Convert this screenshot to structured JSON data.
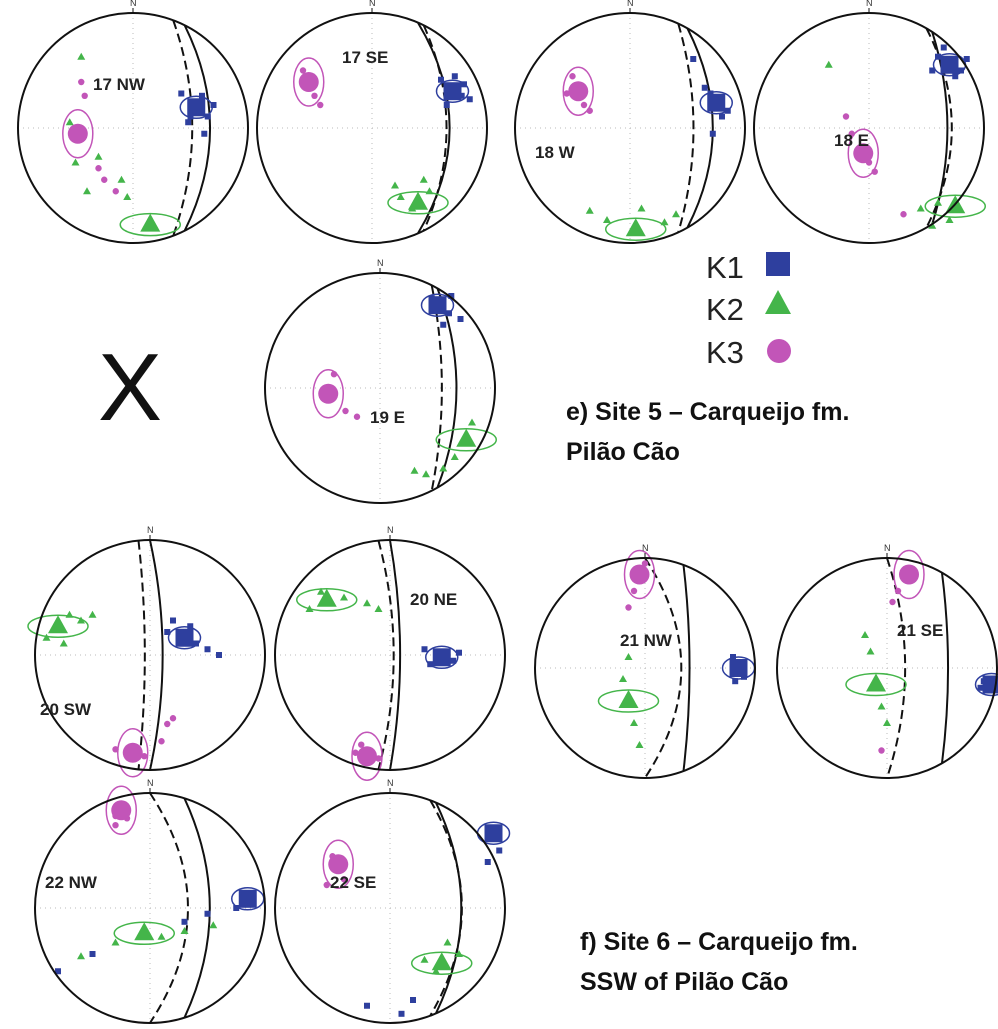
{
  "colors": {
    "k1": "#2e3f9e",
    "k2": "#44b54a",
    "k3": "#c255b8",
    "circle": "#111111",
    "grid": "#bbbbbb"
  },
  "north_label": "N",
  "legend": [
    {
      "label": "K1",
      "shape": "square",
      "color": "#2e3f9e"
    },
    {
      "label": "K2",
      "shape": "triangle",
      "color": "#44b54a"
    },
    {
      "label": "K3",
      "shape": "circle",
      "color": "#c255b8"
    }
  ],
  "missing_marker": "X",
  "captions": [
    {
      "id": "site5",
      "lines": [
        "e) Site 5 – Carqueijo fm.",
        "Pilão Cão"
      ]
    },
    {
      "id": "site6",
      "lines": [
        "f) Site 6 – Carqueijo fm.",
        "SSW of Pilão Cão"
      ]
    }
  ],
  "nets": [
    {
      "id": "17NW",
      "label": "17 NW",
      "k1": {
        "mean": [
          0.55,
          -0.18
        ],
        "scatter": [
          [
            0.42,
            -0.3
          ],
          [
            0.65,
            -0.1
          ],
          [
            0.5,
            -0.22
          ],
          [
            0.6,
            -0.28
          ],
          [
            0.7,
            -0.2
          ],
          [
            0.5,
            -0.1
          ],
          [
            0.48,
            -0.05
          ],
          [
            0.62,
            0.05
          ]
        ]
      },
      "k2": {
        "mean": [
          0.15,
          0.84
        ],
        "scatter": [
          [
            -0.45,
            -0.62
          ],
          [
            -0.3,
            0.25
          ],
          [
            -0.1,
            0.45
          ],
          [
            -0.4,
            0.55
          ],
          [
            -0.5,
            0.3
          ],
          [
            -0.05,
            0.6
          ],
          [
            -0.55,
            -0.05
          ]
        ]
      },
      "k3": {
        "mean": [
          -0.48,
          0.05
        ],
        "scatter": [
          [
            -0.42,
            -0.28
          ],
          [
            -0.45,
            -0.4
          ],
          [
            -0.3,
            0.35
          ],
          [
            -0.25,
            0.45
          ],
          [
            -0.15,
            0.55
          ]
        ]
      },
      "planes": {
        "solid": [
          0.45,
          0.2
        ],
        "dashed": [
          0.35,
          0.15
        ]
      }
    },
    {
      "id": "17SE",
      "label": "17 SE",
      "k1": {
        "mean": [
          0.7,
          -0.32
        ],
        "scatter": [
          [
            0.6,
            -0.42
          ],
          [
            0.78,
            -0.28
          ],
          [
            0.65,
            -0.2
          ],
          [
            0.8,
            -0.38
          ],
          [
            0.72,
            -0.45
          ],
          [
            0.85,
            -0.25
          ]
        ]
      },
      "k2": {
        "mean": [
          0.4,
          0.65
        ],
        "scatter": [
          [
            0.2,
            0.5
          ],
          [
            0.35,
            0.7
          ],
          [
            0.45,
            0.45
          ],
          [
            0.5,
            0.55
          ],
          [
            0.25,
            0.6
          ]
        ]
      },
      "k3": {
        "mean": [
          -0.55,
          -0.4
        ],
        "scatter": [
          [
            -0.6,
            -0.5
          ],
          [
            -0.5,
            -0.28
          ],
          [
            -0.45,
            -0.2
          ]
        ]
      },
      "planes": {
        "solid": [
          0.4,
          0.25
        ],
        "dashed": [
          0.45,
          0.18
        ]
      }
    },
    {
      "id": "18W",
      "label": "18 W",
      "k1": {
        "mean": [
          0.75,
          -0.22
        ],
        "scatter": [
          [
            0.65,
            -0.35
          ],
          [
            0.8,
            -0.1
          ],
          [
            0.7,
            -0.3
          ],
          [
            0.85,
            -0.15
          ],
          [
            0.55,
            -0.6
          ],
          [
            0.72,
            0.05
          ]
        ]
      },
      "k2": {
        "mean": [
          0.05,
          0.88
        ],
        "scatter": [
          [
            -0.35,
            0.72
          ],
          [
            -0.2,
            0.8
          ],
          [
            0.1,
            0.7
          ],
          [
            0.3,
            0.82
          ],
          [
            0.4,
            0.75
          ]
        ]
      },
      "k3": {
        "mean": [
          -0.45,
          -0.32
        ],
        "scatter": [
          [
            -0.5,
            -0.45
          ],
          [
            -0.4,
            -0.2
          ],
          [
            -0.35,
            -0.15
          ],
          [
            -0.55,
            -0.3
          ]
        ]
      },
      "planes": {
        "solid": [
          0.5,
          0.2
        ],
        "dashed": [
          0.42,
          0.12
        ]
      }
    },
    {
      "id": "18E",
      "label": "18 E",
      "k1": {
        "mean": [
          0.7,
          -0.55
        ],
        "scatter": [
          [
            0.6,
            -0.62
          ],
          [
            0.75,
            -0.45
          ],
          [
            0.8,
            -0.5
          ],
          [
            0.65,
            -0.7
          ],
          [
            0.85,
            -0.6
          ],
          [
            0.55,
            -0.5
          ]
        ]
      },
      "k2": {
        "mean": [
          0.75,
          0.68
        ],
        "scatter": [
          [
            0.45,
            0.7
          ],
          [
            0.6,
            0.65
          ],
          [
            0.7,
            0.8
          ],
          [
            0.55,
            0.85
          ],
          [
            -0.35,
            -0.55
          ]
        ]
      },
      "k3": {
        "mean": [
          -0.05,
          0.22
        ],
        "scatter": [
          [
            -0.15,
            0.05
          ],
          [
            0.0,
            0.3
          ],
          [
            0.05,
            0.38
          ],
          [
            -0.2,
            -0.1
          ],
          [
            0.3,
            0.75
          ]
        ]
      },
      "planes": {
        "solid": [
          0.55,
          0.12
        ],
        "dashed": [
          0.5,
          0.2
        ]
      }
    },
    {
      "id": "19E",
      "label": "19 E",
      "k1": {
        "mean": [
          0.5,
          -0.72
        ],
        "scatter": [
          [
            0.45,
            -0.78
          ],
          [
            0.6,
            -0.65
          ],
          [
            0.55,
            -0.55
          ],
          [
            0.7,
            -0.6
          ],
          [
            0.62,
            -0.8
          ]
        ]
      },
      "k2": {
        "mean": [
          0.75,
          0.45
        ],
        "scatter": [
          [
            0.55,
            0.7
          ],
          [
            0.65,
            0.6
          ],
          [
            0.8,
            0.3
          ],
          [
            0.4,
            0.75
          ],
          [
            0.3,
            0.72
          ]
        ]
      },
      "k3": {
        "mean": [
          -0.45,
          0.05
        ],
        "scatter": [
          [
            -0.4,
            -0.12
          ],
          [
            -0.3,
            0.2
          ],
          [
            -0.2,
            0.25
          ]
        ]
      },
      "planes": {
        "solid": [
          0.5,
          0.15
        ],
        "dashed": [
          0.45,
          0.08
        ]
      }
    },
    {
      "id": "20SW",
      "label": "20 SW",
      "k1": {
        "mean": [
          0.3,
          -0.15
        ],
        "scatter": [
          [
            0.15,
            -0.2
          ],
          [
            0.4,
            -0.1
          ],
          [
            0.5,
            -0.05
          ],
          [
            0.2,
            -0.3
          ],
          [
            0.6,
            0.0
          ],
          [
            0.35,
            -0.25
          ]
        ]
      },
      "k2": {
        "mean": [
          -0.8,
          -0.25
        ],
        "scatter": [
          [
            -0.7,
            -0.35
          ],
          [
            -0.9,
            -0.15
          ],
          [
            -0.6,
            -0.3
          ],
          [
            -0.75,
            -0.1
          ],
          [
            -0.5,
            -0.35
          ]
        ]
      },
      "k3": {
        "mean": [
          -0.15,
          0.85
        ],
        "scatter": [
          [
            -0.3,
            0.82
          ],
          [
            -0.05,
            0.88
          ],
          [
            0.1,
            0.75
          ],
          [
            0.15,
            0.6
          ],
          [
            0.2,
            0.55
          ]
        ]
      },
      "planes": {
        "solid": [
          0.0,
          0.1
        ],
        "dashed": [
          -0.1,
          0.05
        ]
      }
    },
    {
      "id": "20NE",
      "label": "20 NE",
      "k1": {
        "mean": [
          0.45,
          0.02
        ],
        "scatter": [
          [
            0.3,
            -0.05
          ],
          [
            0.55,
            0.05
          ],
          [
            0.6,
            -0.02
          ],
          [
            0.35,
            0.08
          ]
        ]
      },
      "k2": {
        "mean": [
          -0.55,
          -0.48
        ],
        "scatter": [
          [
            -0.7,
            -0.4
          ],
          [
            -0.4,
            -0.5
          ],
          [
            -0.2,
            -0.45
          ],
          [
            -0.6,
            -0.55
          ],
          [
            -0.1,
            -0.4
          ]
        ]
      },
      "k3": {
        "mean": [
          -0.2,
          0.88
        ],
        "scatter": [
          [
            -0.3,
            0.85
          ],
          [
            -0.1,
            0.9
          ],
          [
            -0.25,
            0.78
          ]
        ]
      },
      "planes": {
        "solid": [
          0.0,
          0.08
        ],
        "dashed": [
          -0.1,
          0.12
        ]
      }
    },
    {
      "id": "21NW",
      "label": "21 NW",
      "k1": {
        "mean": [
          0.85,
          0.0
        ],
        "scatter": [
          [
            0.8,
            -0.1
          ],
          [
            0.9,
            0.08
          ],
          [
            0.82,
            0.12
          ],
          [
            0.88,
            -0.05
          ]
        ]
      },
      "k2": {
        "mean": [
          -0.15,
          0.3
        ],
        "scatter": [
          [
            -0.2,
            0.1
          ],
          [
            -0.1,
            0.5
          ],
          [
            -0.15,
            -0.1
          ],
          [
            -0.05,
            0.7
          ]
        ]
      },
      "k3": {
        "mean": [
          -0.05,
          -0.85
        ],
        "scatter": [
          [
            -0.1,
            -0.7
          ],
          [
            0.0,
            -0.95
          ],
          [
            -0.15,
            -0.55
          ]
        ]
      },
      "planes": {
        "solid": [
          0.35,
          0.05
        ],
        "dashed": [
          0.0,
          0.3
        ]
      }
    },
    {
      "id": "21SE",
      "label": "21 SE",
      "k1": {
        "mean": [
          0.95,
          0.15
        ],
        "scatter": [
          [
            0.88,
            0.12
          ],
          [
            0.92,
            0.2
          ],
          [
            0.85,
            0.18
          ],
          [
            0.97,
            0.1
          ]
        ]
      },
      "k2": {
        "mean": [
          -0.1,
          0.15
        ],
        "scatter": [
          [
            -0.2,
            -0.3
          ],
          [
            -0.05,
            0.35
          ],
          [
            -0.15,
            -0.15
          ],
          [
            0.0,
            0.5
          ]
        ]
      },
      "k3": {
        "mean": [
          0.2,
          -0.85
        ],
        "scatter": [
          [
            0.1,
            -0.7
          ],
          [
            0.05,
            -0.6
          ],
          [
            -0.05,
            0.75
          ]
        ]
      },
      "planes": {
        "solid": [
          0.5,
          0.05
        ],
        "dashed": [
          0.0,
          0.15
        ]
      }
    },
    {
      "id": "22NW",
      "label": "22 NW",
      "k1": {
        "mean": [
          0.85,
          -0.08
        ],
        "scatter": [
          [
            0.75,
            0.0
          ],
          [
            0.5,
            0.05
          ],
          [
            0.3,
            0.12
          ],
          [
            -0.5,
            0.4
          ],
          [
            -0.8,
            0.55
          ]
        ]
      },
      "k2": {
        "mean": [
          -0.05,
          0.22
        ],
        "scatter": [
          [
            -0.3,
            0.3
          ],
          [
            0.1,
            0.25
          ],
          [
            -0.6,
            0.42
          ],
          [
            0.3,
            0.2
          ],
          [
            0.55,
            0.15
          ]
        ]
      },
      "k3": {
        "mean": [
          -0.25,
          -0.85
        ],
        "scatter": [
          [
            -0.3,
            -0.8
          ],
          [
            -0.2,
            -0.78
          ],
          [
            -0.3,
            -0.72
          ]
        ]
      },
      "planes": {
        "solid": [
          0.3,
          0.2
        ],
        "dashed": [
          0.0,
          0.3
        ]
      }
    },
    {
      "id": "22SE",
      "label": "22 SE",
      "k1": {
        "mean": [
          0.9,
          -0.65
        ],
        "scatter": [
          [
            0.95,
            -0.5
          ],
          [
            0.85,
            -0.4
          ],
          [
            0.2,
            0.8
          ],
          [
            0.1,
            0.92
          ],
          [
            -0.2,
            0.85
          ]
        ]
      },
      "k2": {
        "mean": [
          0.45,
          0.48
        ],
        "scatter": [
          [
            0.3,
            0.45
          ],
          [
            0.6,
            0.4
          ],
          [
            0.5,
            0.3
          ],
          [
            0.4,
            0.55
          ]
        ]
      },
      "k3": {
        "mean": [
          -0.45,
          -0.38
        ],
        "scatter": [
          [
            -0.5,
            -0.45
          ],
          [
            -0.4,
            -0.25
          ],
          [
            -0.55,
            -0.2
          ]
        ]
      },
      "planes": {
        "solid": [
          0.4,
          0.2
        ],
        "dashed": [
          0.35,
          0.25
        ]
      }
    }
  ]
}
